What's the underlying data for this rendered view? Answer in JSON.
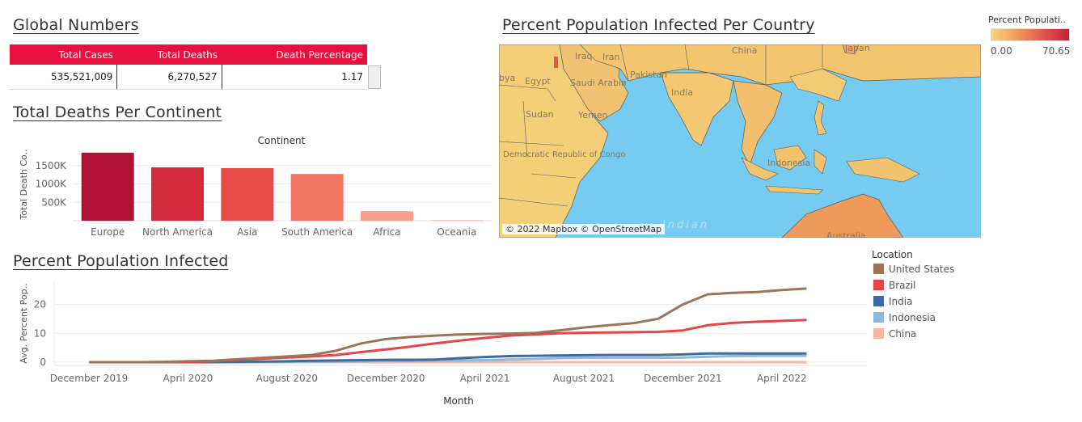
{
  "global_numbers": {
    "title": "Global Numbers",
    "headers": [
      "Total Cases",
      "Total Deaths",
      "Death Percentage"
    ],
    "values": [
      "535,521,009",
      "6,270,527",
      "1.17"
    ]
  },
  "deaths_chart": {
    "title": "Total Deaths Per Continent",
    "header": "Continent",
    "ylabel": "Total Death Co..",
    "yticks": [
      "500K",
      "1000K",
      "1500K"
    ]
  },
  "map": {
    "title": "Percent Population Infected Per Country",
    "attribution": "© 2022 Mapbox © OpenStreetMap",
    "labels": [
      "China",
      "Japan",
      "Iran",
      "Iraq",
      "Egypt",
      "Saudi Arabia",
      "Pakistan",
      "India",
      "Sudan",
      "Yemen",
      "Democratic Republic of Congo",
      "Indonesia",
      "Australia",
      "Indian",
      "bya"
    ]
  },
  "color_legend": {
    "title": "Percent Populati..",
    "min": "0.00",
    "max": "70.65",
    "colors": [
      "#f7d579",
      "#f19a5a",
      "#e2564d",
      "#c61f3c"
    ]
  },
  "infected_chart": {
    "title": "Percent Population Infected",
    "ylabel": "Avg. Percent Pop..",
    "xlabel": "Month",
    "yticks": [
      "0",
      "10",
      "20"
    ],
    "xticks": [
      "December 2019",
      "April 2020",
      "August 2020",
      "December 2020",
      "April 2021",
      "August 2021",
      "December 2021",
      "April 2022"
    ]
  },
  "location_legend": {
    "title": "Location",
    "items": [
      {
        "name": "United States",
        "color": "#9c7558"
      },
      {
        "name": "Brazil",
        "color": "#e64546"
      },
      {
        "name": "India",
        "color": "#3f6a9d"
      },
      {
        "name": "Indonesia",
        "color": "#92b8d9"
      },
      {
        "name": "China",
        "color": "#f7b7a3"
      }
    ]
  },
  "chart_data": [
    {
      "type": "bar",
      "title": "Total Deaths Per Continent",
      "xlabel": "Continent",
      "ylabel": "Total Death Co..",
      "categories": [
        "Europe",
        "North America",
        "Asia",
        "South America",
        "Africa",
        "Oceania"
      ],
      "values": [
        1850000,
        1450000,
        1430000,
        1270000,
        260000,
        20000
      ],
      "colors": [
        "#b01237",
        "#d42c3e",
        "#e84c48",
        "#f27662",
        "#f7a08c",
        "#f9c4b5"
      ],
      "ylim": [
        0,
        2000000
      ],
      "grid": true
    },
    {
      "type": "line",
      "title": "Percent Population Infected",
      "xlabel": "Month",
      "ylabel": "Avg. Percent Pop..",
      "x": [
        "2020-01",
        "2020-02",
        "2020-03",
        "2020-04",
        "2020-05",
        "2020-06",
        "2020-07",
        "2020-08",
        "2020-09",
        "2020-10",
        "2020-11",
        "2020-12",
        "2021-01",
        "2021-02",
        "2021-03",
        "2021-04",
        "2021-05",
        "2021-06",
        "2021-07",
        "2021-08",
        "2021-09",
        "2021-10",
        "2021-11",
        "2021-12",
        "2022-01",
        "2022-02",
        "2022-03",
        "2022-04",
        "2022-05",
        "2022-06"
      ],
      "series": [
        {
          "name": "United States",
          "values": [
            0,
            0,
            0,
            0.1,
            0.3,
            0.5,
            1.0,
            1.5,
            2.0,
            2.5,
            4.0,
            6.5,
            8.0,
            8.7,
            9.2,
            9.6,
            9.8,
            9.9,
            10.1,
            11.0,
            12.0,
            12.8,
            13.5,
            15.0,
            20.0,
            23.5,
            24.0,
            24.3,
            25.0,
            25.5
          ]
        },
        {
          "name": "Brazil",
          "values": [
            0,
            0,
            0,
            0,
            0.1,
            0.3,
            0.8,
            1.2,
            1.6,
            2.0,
            2.5,
            3.5,
            4.4,
            5.4,
            6.5,
            7.5,
            8.4,
            9.2,
            9.6,
            10.0,
            10.2,
            10.3,
            10.4,
            10.5,
            11.0,
            12.8,
            13.6,
            14.0,
            14.3,
            14.6
          ]
        },
        {
          "name": "India",
          "values": [
            0,
            0,
            0,
            0,
            0,
            0,
            0.1,
            0.2,
            0.3,
            0.5,
            0.6,
            0.7,
            0.8,
            0.8,
            0.9,
            1.4,
            1.8,
            2.1,
            2.2,
            2.3,
            2.4,
            2.5,
            2.5,
            2.5,
            2.7,
            3.0,
            3.0,
            3.0,
            3.0,
            3.0
          ]
        },
        {
          "name": "Indonesia",
          "values": [
            0,
            0,
            0,
            0,
            0,
            0,
            0,
            0.1,
            0.1,
            0.2,
            0.2,
            0.3,
            0.4,
            0.4,
            0.5,
            0.6,
            0.7,
            0.9,
            1.1,
            1.4,
            1.5,
            1.5,
            1.5,
            1.5,
            1.6,
            1.9,
            2.1,
            2.2,
            2.2,
            2.2
          ]
        },
        {
          "name": "China",
          "values": [
            0,
            0,
            0,
            0,
            0,
            0,
            0,
            0,
            0,
            0,
            0,
            0,
            0,
            0,
            0,
            0,
            0,
            0,
            0,
            0,
            0,
            0,
            0,
            0,
            0,
            0,
            0,
            0,
            0,
            0
          ]
        }
      ],
      "ylim": [
        0,
        28
      ],
      "grid": true,
      "legend": "right"
    }
  ]
}
